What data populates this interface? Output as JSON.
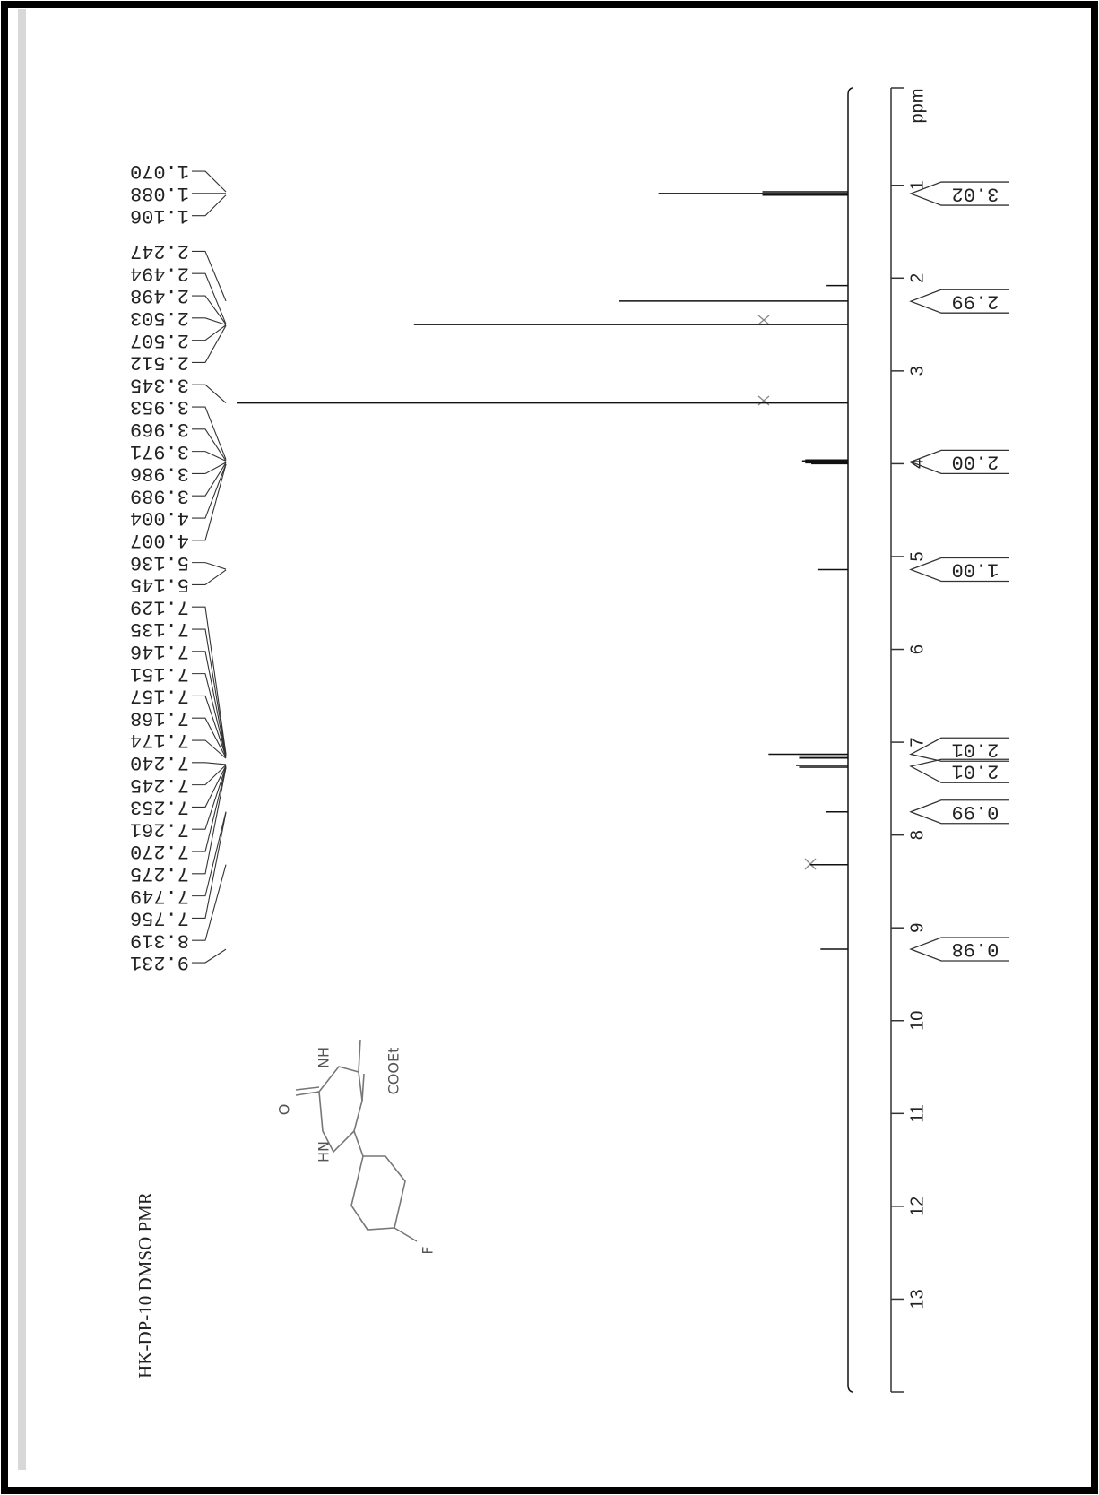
{
  "chart_data": {
    "type": "spectrum",
    "title": "HK-DP-10 DMSO PMR",
    "xlabel": "ppm",
    "x": [
      1.07,
      1.088,
      1.106,
      2.08,
      2.247,
      2.5,
      3.345,
      3.96,
      3.97,
      3.99,
      4.0,
      5.14,
      7.13,
      7.15,
      7.17,
      7.25,
      7.27,
      7.75,
      8.32,
      9.23
    ],
    "values": [
      14,
      31,
      14,
      3.5,
      37.5,
      71,
      100,
      7,
      7.5,
      7,
      6,
      5,
      13,
      8,
      8,
      8.5,
      8,
      3.6,
      6.2,
      4.5
    ],
    "color": "#111111",
    "xlim": [
      14,
      -0.05
    ],
    "xticks": [
      1,
      2,
      3,
      4,
      5,
      6,
      7,
      8,
      9,
      10,
      11,
      12,
      13
    ],
    "peak_labels": [
      "1.070",
      "1.088",
      "1.106",
      "2.247",
      "2.494",
      "2.498",
      "2.503",
      "2.507",
      "2.512",
      "3.345",
      "3.953",
      "3.969",
      "3.971",
      "3.986",
      "3.989",
      "4.004",
      "4.007",
      "5.136",
      "5.145",
      "7.129",
      "7.135",
      "7.146",
      "7.151",
      "7.157",
      "7.168",
      "7.174",
      "7.240",
      "7.245",
      "7.253",
      "7.261",
      "7.270",
      "7.275",
      "7.749",
      "7.756",
      "8.319",
      "9.231"
    ],
    "integrals": {
      "x": [
        1.09,
        2.25,
        3.98,
        5.14,
        7.13,
        7.26,
        7.75,
        9.23
      ],
      "values": [
        3.02,
        2.99,
        {
          "value": 2,
          "label": "2.00"
        },
        {
          "value": 1,
          "label": "1.00"
        },
        2.01,
        2.01,
        0.99,
        0.98
      ]
    },
    "structure_labels": [
      "HN",
      "O",
      "NH",
      "COOEt",
      "F"
    ]
  }
}
